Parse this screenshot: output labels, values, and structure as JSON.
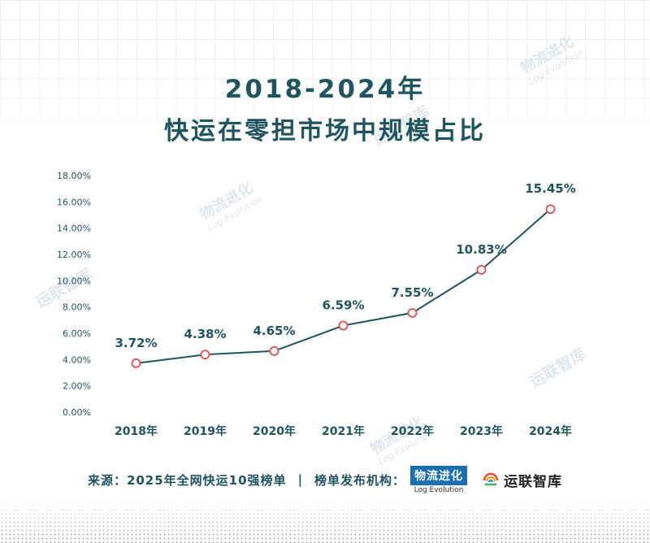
{
  "title": {
    "line1": "2018-2024年",
    "line2": "快运在零担市场中规模占比"
  },
  "chart_data": {
    "type": "line",
    "categories": [
      "2018年",
      "2019年",
      "2020年",
      "2021年",
      "2022年",
      "2023年",
      "2024年"
    ],
    "values": [
      3.72,
      4.38,
      4.65,
      6.59,
      7.55,
      10.83,
      15.45
    ],
    "data_labels": [
      "3.72%",
      "4.38%",
      "4.65%",
      "6.59%",
      "7.55%",
      "10.83%",
      "15.45%"
    ],
    "yticks": [
      "0.00%",
      "2.00%",
      "4.00%",
      "6.00%",
      "8.00%",
      "10.00%",
      "12.00%",
      "14.00%",
      "16.00%",
      "18.00%"
    ],
    "ylim": [
      0,
      18
    ],
    "grid": false,
    "colors": {
      "line": "#1f5560",
      "marker": "#e05a5a",
      "text": "#1f5560"
    }
  },
  "footer": {
    "source": "来源：2025年全网快运10强榜单",
    "divider": "|",
    "publisher": "榜单发布机构："
  },
  "logos": {
    "wuliu": {
      "name": "物流进化",
      "sub": "Log Evolution"
    },
    "yunlian": {
      "name": "运联智库"
    }
  },
  "icons": {
    "yunlian_mark": "yunlian-logo-icon"
  }
}
